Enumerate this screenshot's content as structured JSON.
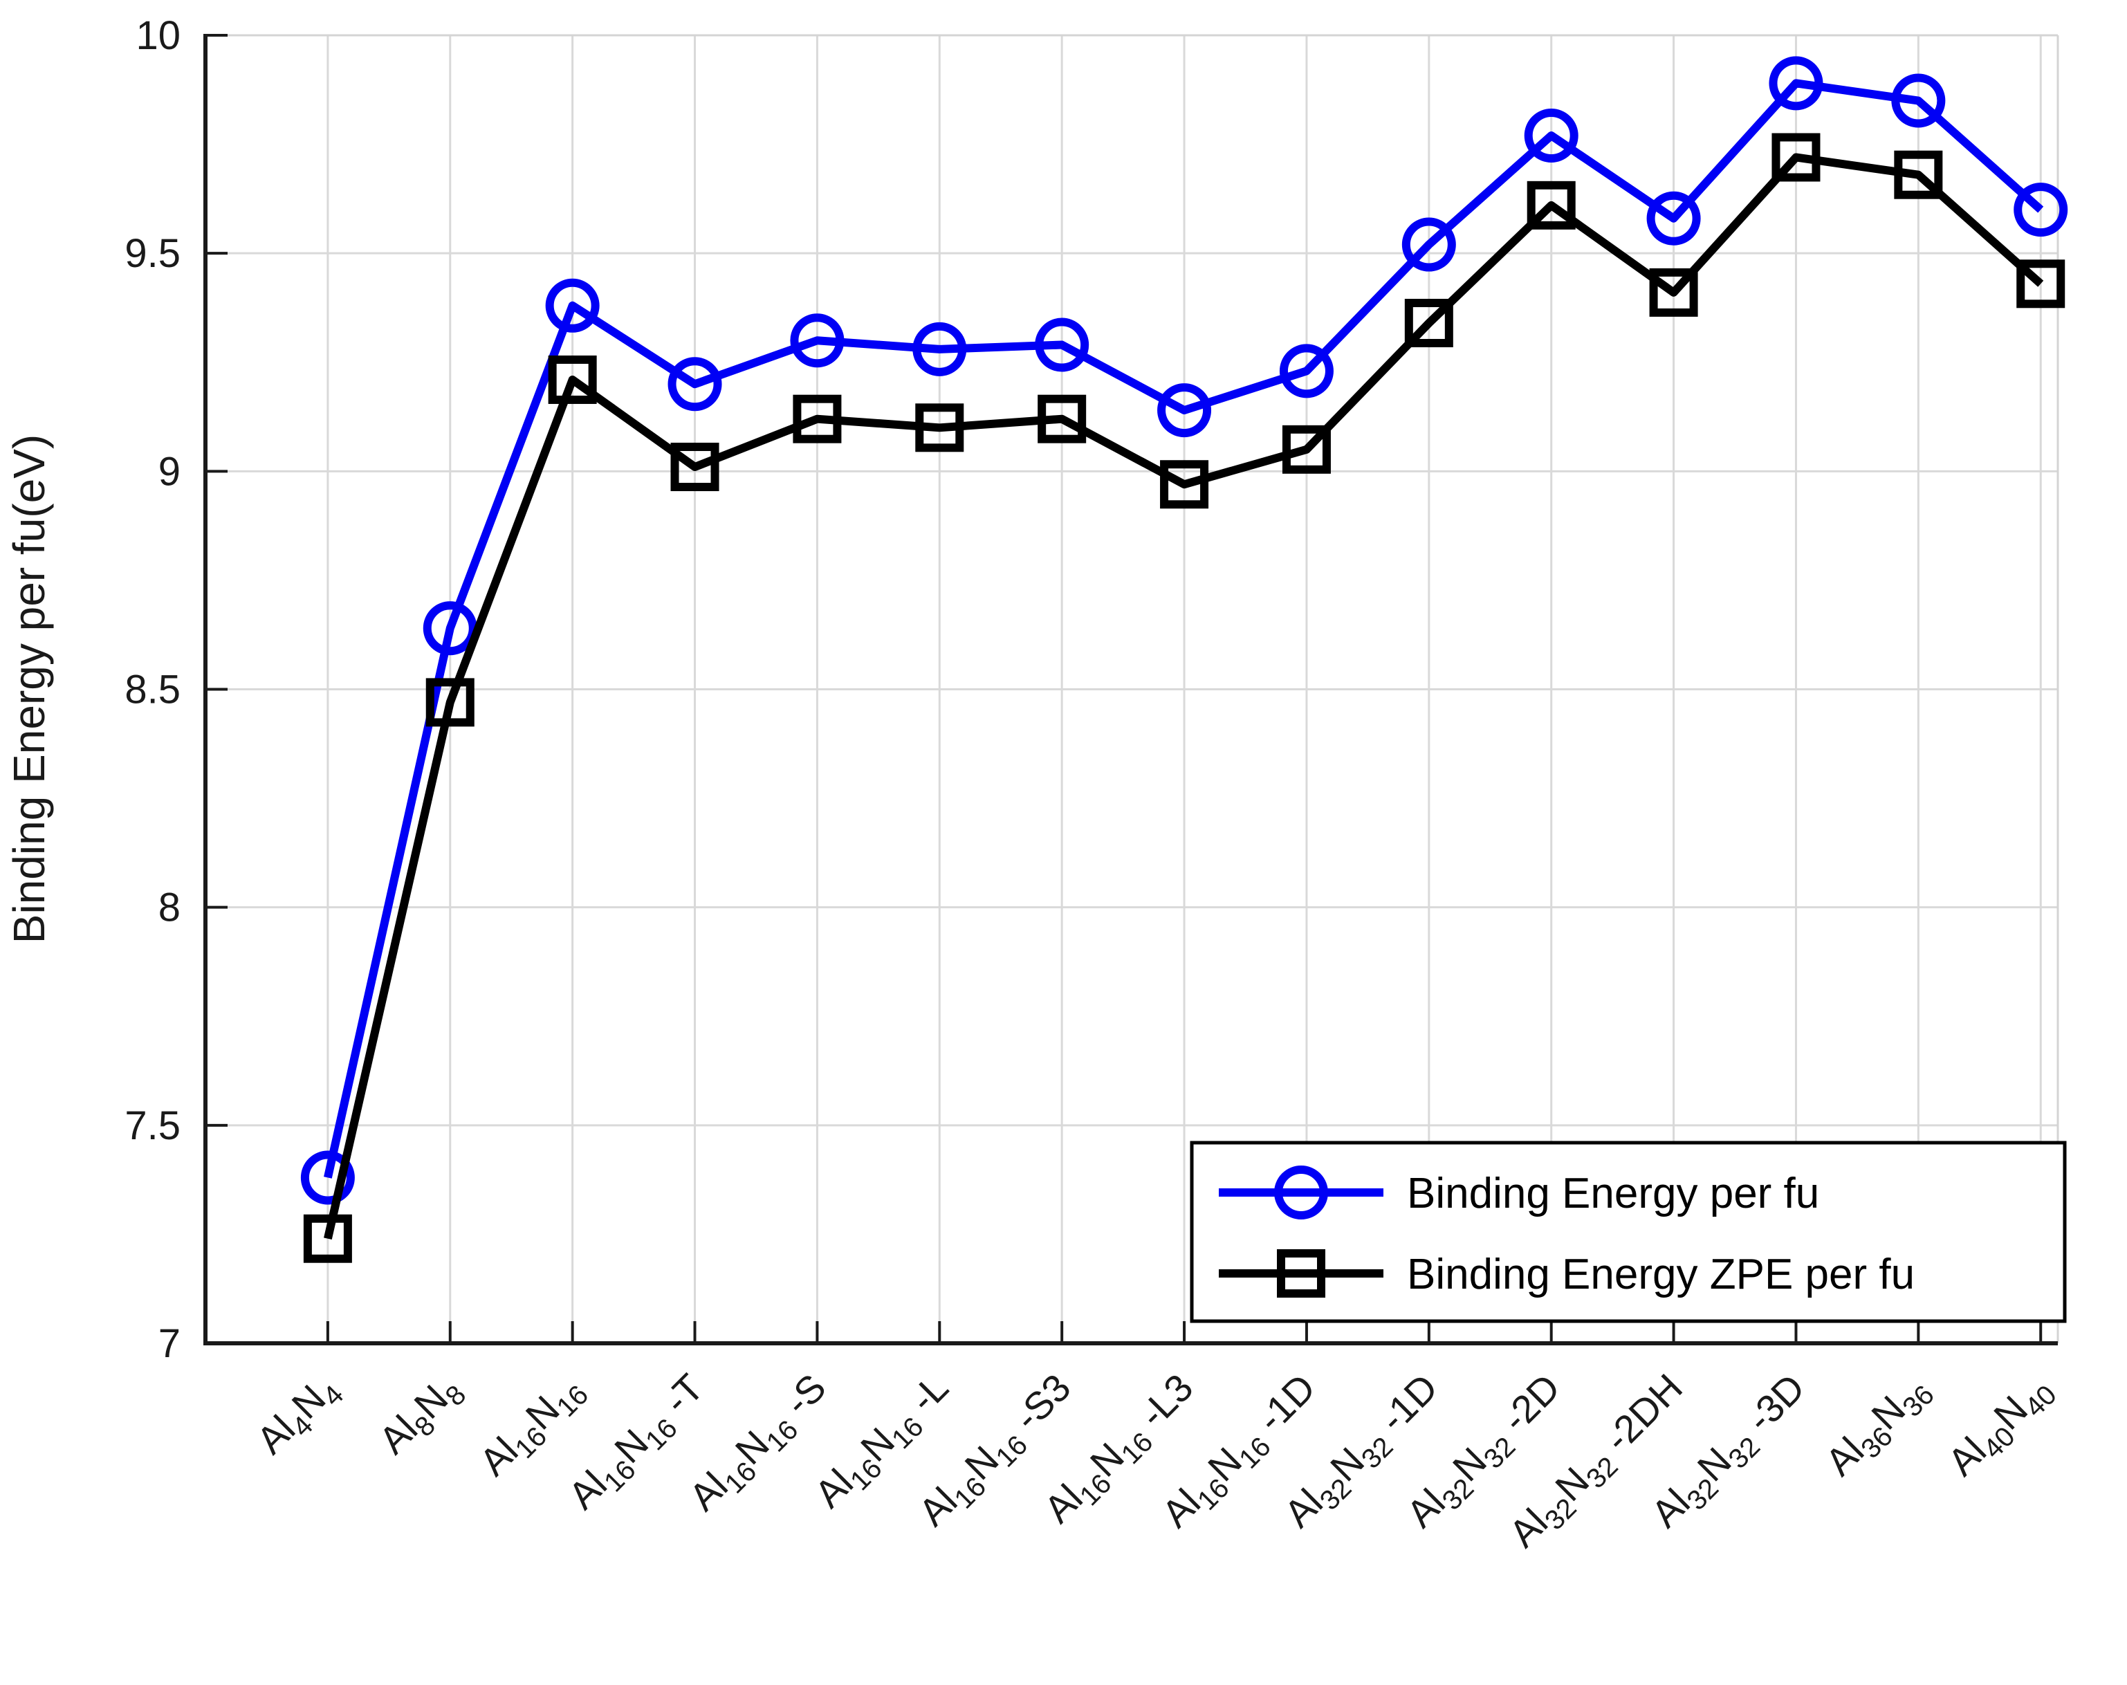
{
  "figure": {
    "background": "#FFFFFF",
    "title": ""
  },
  "colors": {
    "series_binding_energy": "#0000F5",
    "series_binding_energy_zpe": "#000000",
    "grid": "#D9D9D9",
    "box_border": "#D4D4D4",
    "axis": "#1A1A1A",
    "tick_label": "#1A1A1A",
    "legend_border": "#000000",
    "legend_background": "#FFFFFF"
  },
  "chart_data": {
    "type": "line",
    "title": "",
    "xlabel": "",
    "ylabel": "Binding Energy per fu(eV)",
    "ylim": [
      7,
      10
    ],
    "yticks": [
      7,
      7.5,
      8,
      8.5,
      9,
      9.5,
      10
    ],
    "ytick_labels": [
      "7",
      "7.5",
      "8",
      "8.5",
      "9",
      "9.5",
      "10"
    ],
    "grid": "on",
    "legend_position": "lower right",
    "categories": [
      "Al_{4}N_{4}",
      "Al_{8}N_{8}",
      "Al_{16}N_{16}",
      "Al_{16}N_{16} -T",
      "Al_{16}N_{16} -S",
      "Al_{16}N_{16} -L",
      "Al_{16}N_{16} -S3",
      "Al_{16}N_{16} -L3",
      "Al_{16}N_{16} -1D",
      "Al_{32}N_{32} -1D",
      "Al_{32}N_{32} -2D",
      "Al_{32}N_{32} -2DH",
      "Al_{32}N_{32} -3D",
      "Al_{36}N_{36}",
      "Al_{40}N_{40}"
    ],
    "series": [
      {
        "name": "Binding Energy per fu",
        "marker": "circle",
        "color": "#0000F5",
        "values": [
          7.38,
          8.64,
          9.38,
          9.2,
          9.3,
          9.28,
          9.29,
          9.14,
          9.23,
          9.52,
          9.77,
          9.58,
          9.89,
          9.85,
          9.6
        ]
      },
      {
        "name": "Binding Energy ZPE per fu",
        "marker": "square",
        "color": "#000000",
        "values": [
          7.24,
          8.47,
          9.21,
          9.01,
          9.12,
          9.1,
          9.12,
          8.97,
          9.05,
          9.34,
          9.61,
          9.41,
          9.72,
          9.68,
          9.43
        ]
      }
    ],
    "legend_entries": [
      "Binding Energy per fu",
      "Binding Energy ZPE per fu"
    ]
  }
}
